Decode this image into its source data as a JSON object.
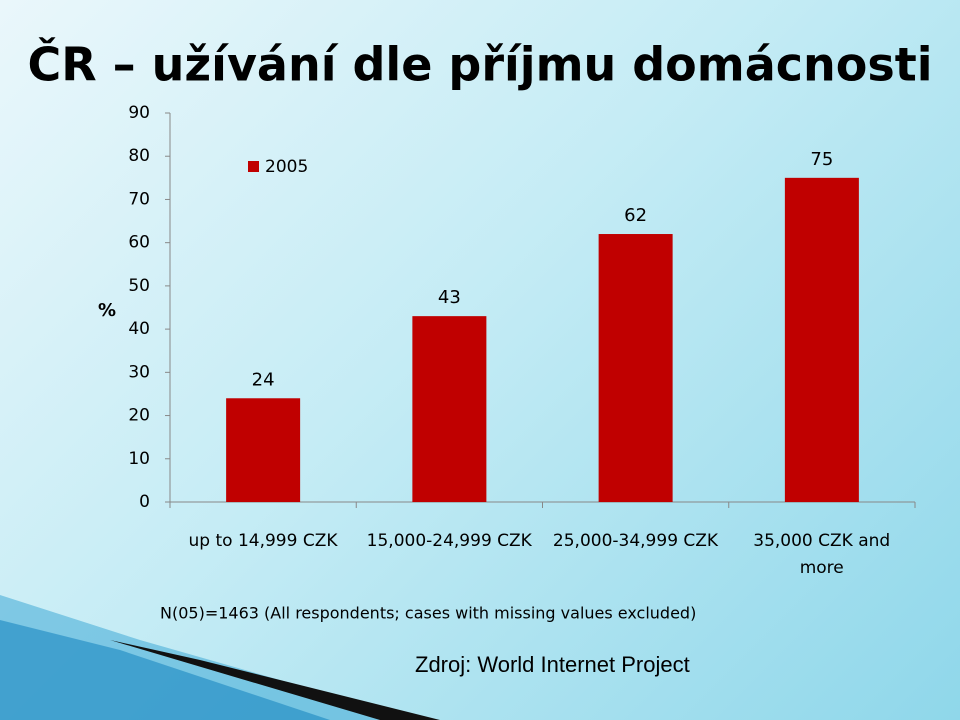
{
  "chart_data": {
    "type": "bar",
    "title": "ČR – užívání dle příjmu domácnosti",
    "y_label": "%",
    "categories": [
      "up to 14,999 CZK",
      "15,000-24,999 CZK",
      "25,000-34,999 CZK",
      "35,000 CZK and more"
    ],
    "series": [
      {
        "name": "2005",
        "color": "#c00000",
        "values": [
          24,
          43,
          62,
          75
        ]
      }
    ],
    "ylim": [
      0,
      90
    ],
    "yticks": [
      0,
      10,
      20,
      30,
      40,
      50,
      60,
      70,
      80,
      90
    ],
    "grid": false,
    "legend": "top-left",
    "note": "N(05)=1463 (All respondents; cases with missing values excluded)",
    "source": "Zdroj: World Internet Project"
  }
}
